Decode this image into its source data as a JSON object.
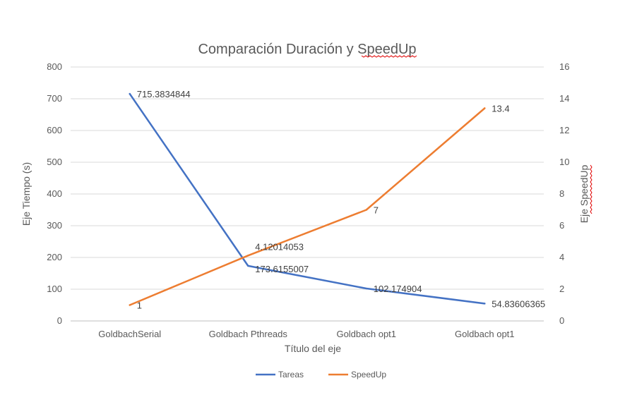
{
  "chart_data": {
    "type": "line",
    "title": "Comparación Duración y SpeedUp",
    "xlabel": "Título del eje",
    "ylabel": "Eje Tiempo (s)",
    "y2label": "Eje SpeedUp",
    "categories": [
      "GoldbachSerial",
      "Goldbach Pthreads",
      "Goldbach opt1",
      "Goldbach opt1"
    ],
    "ylim": [
      0,
      800
    ],
    "y_ticks": [
      0,
      100,
      200,
      300,
      400,
      500,
      600,
      700,
      800
    ],
    "y2lim": [
      0,
      16
    ],
    "y2_ticks": [
      0,
      2,
      4,
      6,
      8,
      10,
      12,
      14,
      16
    ],
    "grid": true,
    "legend_position": "bottom",
    "series": [
      {
        "name": "Tareas",
        "axis": "left",
        "color": "#4472C4",
        "values": [
          715.3834844,
          173.6155007,
          102.174904,
          54.83606365
        ],
        "labels": [
          "715.3834844",
          "173.6155007",
          "102.174904",
          "54.83606365"
        ]
      },
      {
        "name": "SpeedUp",
        "axis": "right",
        "color": "#ED7D31",
        "values": [
          1,
          4.12014053,
          7,
          13.4
        ],
        "labels": [
          "1",
          "4.12014053",
          "7",
          "13.4"
        ]
      }
    ]
  }
}
